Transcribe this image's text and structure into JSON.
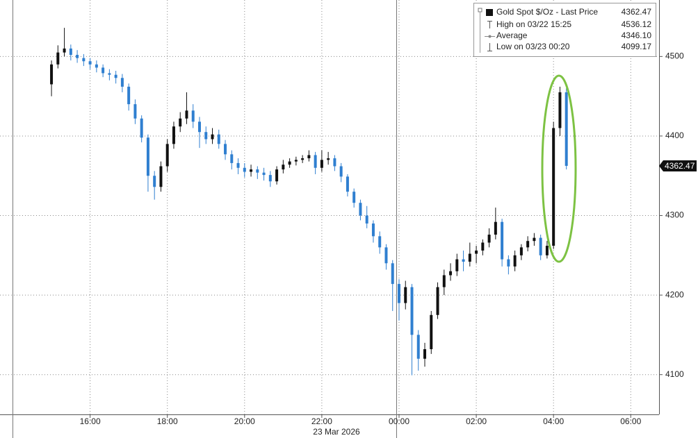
{
  "chart_data": {
    "type": "candlestick",
    "colors": {
      "up": "#111111",
      "down": "#2f7fd0"
    },
    "grid": true,
    "x": [
      "03/22 15:00",
      "03/22 15:10",
      "03/22 15:20",
      "03/22 15:30",
      "03/22 15:40",
      "03/22 15:50",
      "03/22 16:00",
      "03/22 16:10",
      "03/22 16:20",
      "03/22 16:30",
      "03/22 16:40",
      "03/22 16:50",
      "03/22 17:00",
      "03/22 17:10",
      "03/22 17:20",
      "03/22 17:30",
      "03/22 17:40",
      "03/22 17:50",
      "03/22 18:00",
      "03/22 18:10",
      "03/22 18:20",
      "03/22 18:30",
      "03/22 18:40",
      "03/22 18:50",
      "03/22 19:00",
      "03/22 19:10",
      "03/22 19:20",
      "03/22 19:30",
      "03/22 19:40",
      "03/22 19:50",
      "03/22 20:00",
      "03/22 20:10",
      "03/22 20:20",
      "03/22 20:30",
      "03/22 20:40",
      "03/22 20:50",
      "03/22 21:00",
      "03/22 21:10",
      "03/22 21:20",
      "03/22 21:30",
      "03/22 21:40",
      "03/22 21:50",
      "03/22 22:00",
      "03/22 22:10",
      "03/22 22:20",
      "03/22 22:30",
      "03/22 22:40",
      "03/22 22:50",
      "03/22 23:00",
      "03/22 23:10",
      "03/22 23:20",
      "03/22 23:30",
      "03/22 23:40",
      "03/22 23:50",
      "03/23 00:00",
      "03/23 00:10",
      "03/23 00:20",
      "03/23 00:30",
      "03/23 00:40",
      "03/23 00:50",
      "03/23 01:00",
      "03/23 01:10",
      "03/23 01:20",
      "03/23 01:30",
      "03/23 01:40",
      "03/23 01:50",
      "03/23 02:00",
      "03/23 02:10",
      "03/23 02:20",
      "03/23 02:30",
      "03/23 02:40",
      "03/23 02:50",
      "03/23 03:00",
      "03/23 03:10",
      "03/23 03:20",
      "03/23 03:30",
      "03/23 03:40",
      "03/23 03:50",
      "03/23 04:00",
      "03/23 04:10",
      "03/23 04:20"
    ],
    "open": [
      4465,
      4490,
      4505,
      4510,
      4502,
      4498,
      4494,
      4490,
      4486,
      4479,
      4477,
      4473,
      4462,
      4440,
      4422,
      4398,
      4350,
      4336,
      4362,
      4390,
      4412,
      4422,
      4432,
      4418,
      4405,
      4396,
      4402,
      4390,
      4377,
      4366,
      4360,
      4355,
      4358,
      4354,
      4351,
      4343,
      4358,
      4364,
      4368,
      4370,
      4372,
      4376,
      4360,
      4370,
      4372,
      4362,
      4349,
      4330,
      4316,
      4300,
      4290,
      4274,
      4260,
      4240,
      4214,
      4190,
      4210,
      4150,
      4120,
      4132,
      4175,
      4210,
      4225,
      4230,
      4245,
      4242,
      4252,
      4256,
      4266,
      4276,
      4292,
      4245,
      4236,
      4250,
      4260,
      4268,
      4272,
      4250,
      4262,
      4410,
      4455
    ],
    "high": [
      4495,
      4514,
      4536,
      4515,
      4508,
      4503,
      4498,
      4495,
      4490,
      4484,
      4482,
      4478,
      4466,
      4446,
      4426,
      4402,
      4356,
      4368,
      4396,
      4418,
      4430,
      4455,
      4440,
      4424,
      4412,
      4410,
      4408,
      4395,
      4382,
      4372,
      4366,
      4364,
      4362,
      4360,
      4356,
      4362,
      4370,
      4372,
      4374,
      4376,
      4382,
      4380,
      4382,
      4380,
      4376,
      4366,
      4352,
      4334,
      4320,
      4312,
      4294,
      4280,
      4264,
      4244,
      4220,
      4218,
      4214,
      4156,
      4140,
      4180,
      4216,
      4232,
      4240,
      4252,
      4256,
      4266,
      4262,
      4270,
      4284,
      4310,
      4296,
      4250,
      4256,
      4264,
      4274,
      4278,
      4276,
      4268,
      4418,
      4462,
      4460
    ],
    "low": [
      4450,
      4485,
      4500,
      4495,
      4492,
      4488,
      4484,
      4480,
      4474,
      4470,
      4466,
      4455,
      4432,
      4415,
      4392,
      4330,
      4320,
      4330,
      4355,
      4384,
      4405,
      4415,
      4410,
      4385,
      4390,
      4390,
      4384,
      4370,
      4358,
      4352,
      4348,
      4349,
      4346,
      4344,
      4336,
      4339,
      4353,
      4360,
      4363,
      4366,
      4368,
      4352,
      4355,
      4364,
      4356,
      4342,
      4324,
      4310,
      4294,
      4284,
      4266,
      4252,
      4232,
      4180,
      4168,
      4182,
      4099.17,
      4105,
      4110,
      4126,
      4170,
      4200,
      4218,
      4224,
      4230,
      4236,
      4240,
      4250,
      4260,
      4270,
      4236,
      4226,
      4230,
      4244,
      4255,
      4262,
      4244,
      4246,
      4258,
      4400,
      4358
    ],
    "close": [
      4490,
      4505,
      4510,
      4502,
      4498,
      4494,
      4490,
      4486,
      4479,
      4477,
      4473,
      4462,
      4440,
      4422,
      4398,
      4350,
      4336,
      4362,
      4390,
      4412,
      4422,
      4432,
      4418,
      4405,
      4396,
      4402,
      4390,
      4377,
      4366,
      4360,
      4355,
      4358,
      4354,
      4351,
      4343,
      4358,
      4364,
      4368,
      4370,
      4372,
      4376,
      4360,
      4370,
      4372,
      4362,
      4349,
      4330,
      4316,
      4300,
      4290,
      4274,
      4260,
      4240,
      4214,
      4190,
      4210,
      4150,
      4120,
      4132,
      4175,
      4210,
      4225,
      4230,
      4245,
      4242,
      4252,
      4256,
      4266,
      4276,
      4292,
      4245,
      4236,
      4250,
      4260,
      4268,
      4272,
      4250,
      4262,
      4410,
      4455,
      4362.47
    ],
    "xlim": [
      "03/22 13:40",
      "03/23 06:44"
    ],
    "xticks": [
      {
        "value": "03/22 16:00",
        "label": "16:00"
      },
      {
        "value": "03/22 18:00",
        "label": "18:00"
      },
      {
        "value": "03/22 20:00",
        "label": "20:00"
      },
      {
        "value": "03/22 22:00",
        "label": "22:00"
      },
      {
        "value": "03/23 00:00",
        "label": "00:00"
      },
      {
        "value": "03/23 02:00",
        "label": "02:00"
      },
      {
        "value": "03/23 04:00",
        "label": "04:00"
      },
      {
        "value": "03/23 06:00",
        "label": "06:00"
      }
    ],
    "date_label": "23 Mar 2026",
    "ylim": [
      4050,
      4571
    ],
    "yticks": [
      4100,
      4200,
      4300,
      4400,
      4500
    ],
    "legend": [
      {
        "name": "Gold Spot $/Oz - Last Price",
        "value": 4362.47
      },
      {
        "name": "High on 03/22 15:25",
        "value": 4536.12
      },
      {
        "name": "Average",
        "value": 4346.1,
        "label": "4346.10"
      },
      {
        "name": "Low on 03/23 00:20",
        "value": 4099.17
      }
    ]
  }
}
